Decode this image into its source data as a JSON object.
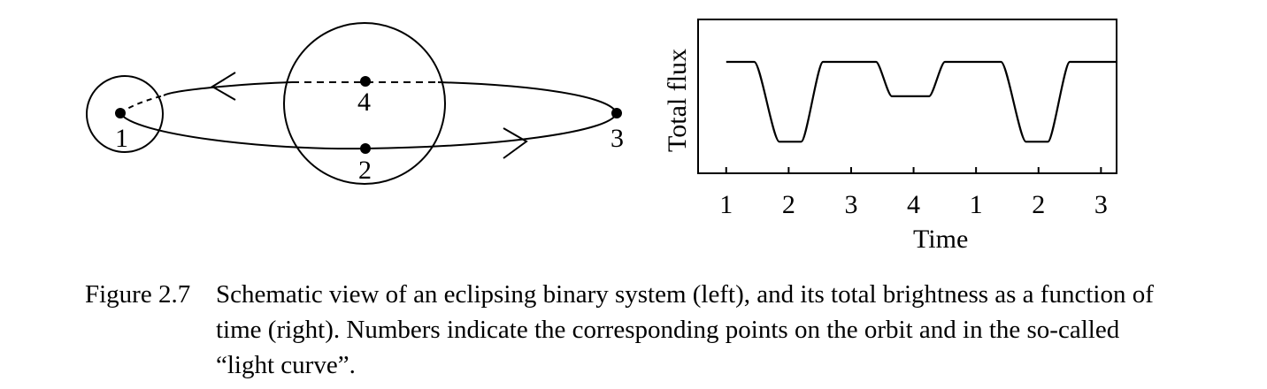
{
  "orbit_diagram": {
    "point_labels": [
      "1",
      "2",
      "3",
      "4"
    ]
  },
  "light_curve": {
    "ylabel": "Total flux",
    "xlabel": "Time",
    "x_tick_labels": [
      "1",
      "2",
      "3",
      "4",
      "1",
      "2",
      "3"
    ]
  },
  "chart_data": {
    "type": "line",
    "xlabel": "Time",
    "ylabel": "Total flux",
    "x_ticks": [
      "1",
      "2",
      "3",
      "4",
      "1",
      "2",
      "3"
    ],
    "grid": false,
    "legend": "none",
    "note_levels": {
      "full": 1.0,
      "secondary_eclipse": 0.72,
      "primary_eclipse": 0.35
    },
    "series": [
      {
        "phase_points": [
          {
            "t": 1.0,
            "flux": 1.0
          },
          {
            "t": 1.45,
            "flux": 1.0
          },
          {
            "t": 1.85,
            "flux": 0.35
          },
          {
            "t": 2.2,
            "flux": 0.35
          },
          {
            "t": 2.55,
            "flux": 1.0
          },
          {
            "t": 3.4,
            "flux": 1.0
          },
          {
            "t": 3.65,
            "flux": 0.72
          },
          {
            "t": 4.25,
            "flux": 0.72
          },
          {
            "t": 4.5,
            "flux": 1.0
          },
          {
            "t": 5.4,
            "flux": 1.0
          },
          {
            "t": 5.8,
            "flux": 0.35
          },
          {
            "t": 6.15,
            "flux": 0.35
          },
          {
            "t": 6.5,
            "flux": 1.0
          },
          {
            "t": 7.25,
            "flux": 1.0
          }
        ]
      }
    ]
  },
  "caption": {
    "label": "Figure 2.7",
    "text": "Schematic view of an eclipsing binary system (left), and its total brightness as a function of time (right). Numbers indicate the corresponding points on the orbit and in the so-called “light curve”."
  }
}
